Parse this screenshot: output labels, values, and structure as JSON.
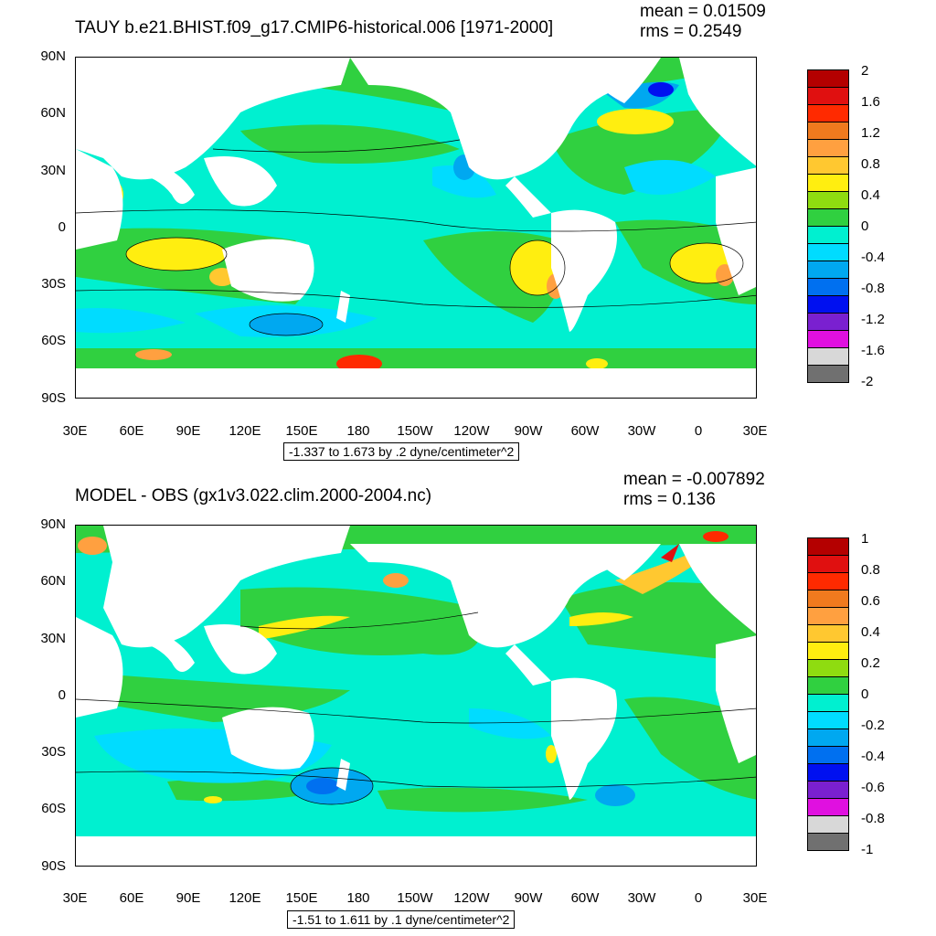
{
  "panels": [
    {
      "title": "TAUY b.e21.BHIST.f09_g17.CMIP6-historical.006 [1971-2000]",
      "mean": "mean = 0.01509",
      "rms": "rms = 0.2549",
      "info": "-1.337 to 1.673 by .2 dyne/centimeter^2",
      "lat_labels": [
        "90N",
        "60N",
        "30N",
        "0",
        "30S",
        "60S",
        "90S"
      ],
      "lon_labels": [
        "30E",
        "60E",
        "90E",
        "120E",
        "150E",
        "180",
        "150W",
        "120W",
        "90W",
        "60W",
        "30W",
        "0",
        "30E"
      ],
      "colorbar": {
        "labels": [
          "2",
          "1.6",
          "1.2",
          "0.8",
          "0.4",
          "0",
          "-0.4",
          "-0.8",
          "-1.2",
          "-1.6",
          "-2"
        ],
        "colors": [
          "#b40000",
          "#e01010",
          "#ff2a00",
          "#f07a1e",
          "#ffa040",
          "#ffc830",
          "#ffee10",
          "#8fdc10",
          "#30d040",
          "#00f0d0",
          "#00dcff",
          "#00a8f0",
          "#0070f0",
          "#0010f0",
          "#7a20d0",
          "#e010e0",
          "#d8d8d8",
          "#707070"
        ]
      }
    },
    {
      "title": "MODEL - OBS (gx1v3.022.clim.2000-2004.nc)",
      "mean": "mean = -0.007892",
      "rms": "rms = 0.136",
      "info": "-1.51 to 1.611 by .1 dyne/centimeter^2",
      "lat_labels": [
        "90N",
        "60N",
        "30N",
        "0",
        "30S",
        "60S",
        "90S"
      ],
      "lon_labels": [
        "30E",
        "60E",
        "90E",
        "120E",
        "150E",
        "180",
        "150W",
        "120W",
        "90W",
        "60W",
        "30W",
        "0",
        "30E"
      ],
      "colorbar": {
        "labels": [
          "1",
          "0.8",
          "0.6",
          "0.4",
          "0.2",
          "0",
          "-0.2",
          "-0.4",
          "-0.6",
          "-0.8",
          "-1"
        ],
        "colors": [
          "#b40000",
          "#e01010",
          "#ff2a00",
          "#f07a1e",
          "#ffa040",
          "#ffc830",
          "#ffee10",
          "#8fdc10",
          "#30d040",
          "#00f0d0",
          "#00dcff",
          "#00a8f0",
          "#0070f0",
          "#0010f0",
          "#7a20d0",
          "#e010e0",
          "#d8d8d8",
          "#707070"
        ]
      }
    }
  ]
}
